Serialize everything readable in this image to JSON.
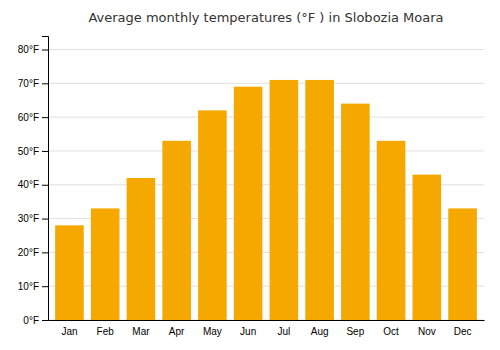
{
  "chart_data": {
    "type": "bar",
    "title": "Average monthly temperatures (°F ) in Slobozia Moara",
    "categories": [
      "Jan",
      "Feb",
      "Mar",
      "Apr",
      "May",
      "Jun",
      "Jul",
      "Aug",
      "Sep",
      "Oct",
      "Nov",
      "Dec"
    ],
    "values": [
      28,
      33,
      42,
      53,
      62,
      69,
      71,
      71,
      64,
      53,
      43,
      33
    ],
    "color": "#F5A800",
    "ylim": [
      0,
      84
    ],
    "yticks": [
      {
        "value": 0,
        "label": "0°F"
      },
      {
        "value": 10,
        "label": "10°F"
      },
      {
        "value": 20,
        "label": "20°F"
      },
      {
        "value": 30,
        "label": "30°F"
      },
      {
        "value": 40,
        "label": "40°F"
      },
      {
        "value": 50,
        "label": "50°F"
      },
      {
        "value": 60,
        "label": "60°F"
      },
      {
        "value": 70,
        "label": "70°F"
      },
      {
        "value": 80,
        "label": "80°F"
      }
    ],
    "grid": true
  }
}
